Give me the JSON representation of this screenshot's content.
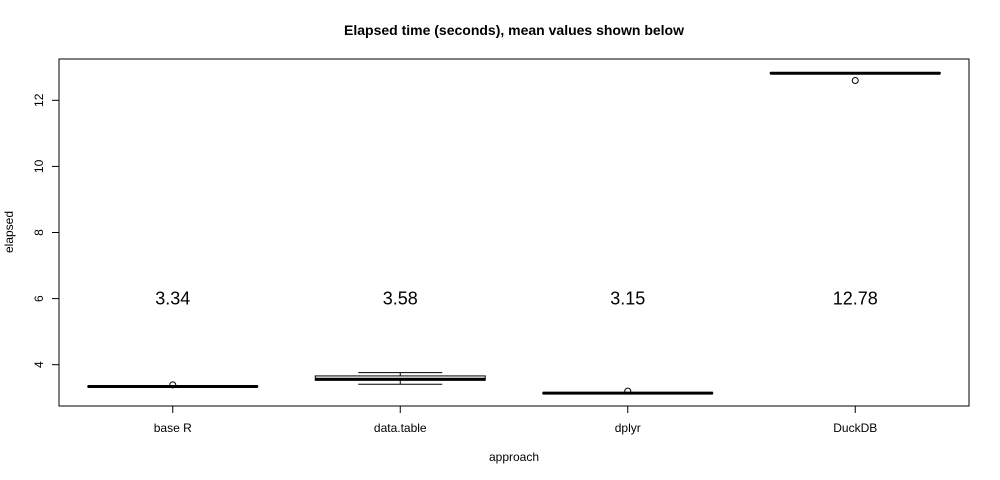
{
  "chart_data": {
    "type": "boxplot",
    "title": "Elapsed time (seconds), mean values shown below",
    "xlabel": "approach",
    "ylabel": "elapsed",
    "ylim": [
      2.75,
      13.25
    ],
    "yticks": [
      4,
      6,
      8,
      10,
      12
    ],
    "ytick_labels": [
      "4",
      "6",
      "8",
      "10",
      "12"
    ],
    "grid": false,
    "legend": "none",
    "mean_label_y": 6,
    "categories": [
      "base R",
      "data.table",
      "dplyr",
      "DuckDB"
    ],
    "boxes": [
      {
        "category": "base R",
        "whisker_low": 3.33,
        "q1": 3.33,
        "median": 3.34,
        "q3": 3.35,
        "whisker_high": 3.35,
        "outliers": [
          3.39
        ],
        "mean": "3.34"
      },
      {
        "category": "data.table",
        "whisker_low": 3.41,
        "q1": 3.53,
        "median": 3.56,
        "q3": 3.66,
        "whisker_high": 3.76,
        "outliers": [],
        "mean": "3.58"
      },
      {
        "category": "dplyr",
        "whisker_low": 3.13,
        "q1": 3.13,
        "median": 3.14,
        "q3": 3.15,
        "whisker_high": 3.15,
        "outliers": [
          3.2
        ],
        "mean": "3.15"
      },
      {
        "category": "DuckDB",
        "whisker_low": 12.81,
        "q1": 12.81,
        "median": 12.82,
        "q3": 12.84,
        "whisker_high": 12.84,
        "outliers": [
          12.6
        ],
        "mean": "12.78"
      }
    ]
  }
}
